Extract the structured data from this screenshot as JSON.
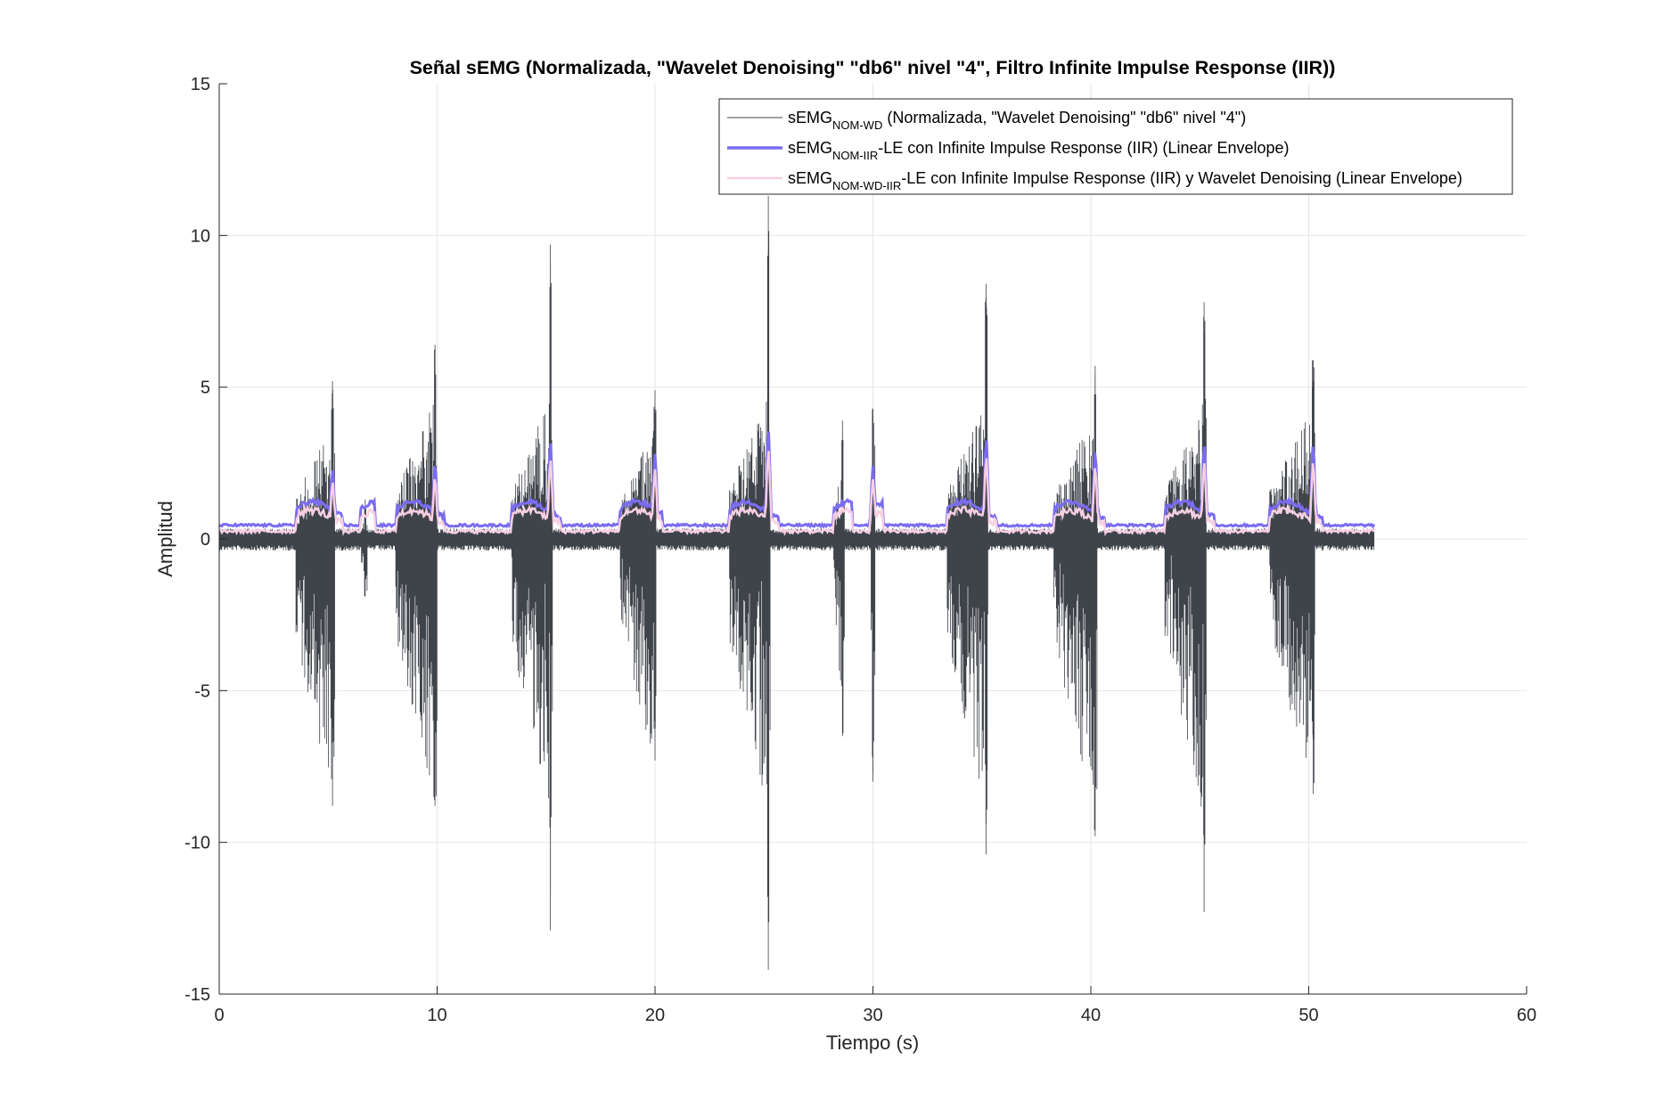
{
  "chart_data": {
    "type": "line",
    "title": "Señal sEMG (Normalizada, \"Wavelet Denoising\" \"db6\" nivel \"4\", Filtro Infinite Impulse Response (IIR))",
    "xlabel": "Tiempo (s)",
    "ylabel": "Amplitud",
    "xlim": [
      0,
      60
    ],
    "ylim": [
      -15,
      15
    ],
    "xticks": [
      0,
      10,
      20,
      30,
      40,
      50,
      60
    ],
    "yticks": [
      -15,
      -10,
      -5,
      0,
      5,
      10,
      15
    ],
    "grid": true,
    "legend_position": "top-right",
    "signal_duration_s": 53,
    "bursts": [
      {
        "start": 3.5,
        "end": 5.3,
        "peak_t": 5.2,
        "max": 5.2,
        "min": -8.8,
        "env_peak": 2.3
      },
      {
        "start": 6.5,
        "end": 6.8,
        "peak_t": 6.7,
        "max": 1.3,
        "min": -1.9,
        "env_peak": 0.7
      },
      {
        "start": 8.1,
        "end": 10.0,
        "peak_t": 9.9,
        "max": 6.4,
        "min": -8.8,
        "env_peak": 2.5
      },
      {
        "start": 13.4,
        "end": 15.3,
        "peak_t": 15.2,
        "max": 9.7,
        "min": -12.9,
        "env_peak": 3.2
      },
      {
        "start": 18.4,
        "end": 20.0,
        "peak_t": 20.0,
        "max": 4.9,
        "min": -7.3,
        "env_peak": 2.8
      },
      {
        "start": 23.4,
        "end": 25.3,
        "peak_t": 25.2,
        "max": 11.3,
        "min": -14.2,
        "env_peak": 3.6
      },
      {
        "start": 28.2,
        "end": 28.7,
        "peak_t": 28.6,
        "max": 3.9,
        "min": -6.5,
        "env_peak": 1.3
      },
      {
        "start": 29.9,
        "end": 30.1,
        "peak_t": 30.0,
        "max": 4.3,
        "min": -8.0,
        "env_peak": 2.4
      },
      {
        "start": 33.4,
        "end": 35.3,
        "peak_t": 35.2,
        "max": 8.4,
        "min": -10.4,
        "env_peak": 3.3
      },
      {
        "start": 38.3,
        "end": 40.3,
        "peak_t": 40.2,
        "max": 5.7,
        "min": -9.8,
        "env_peak": 2.9
      },
      {
        "start": 43.4,
        "end": 45.3,
        "peak_t": 45.2,
        "max": 7.8,
        "min": -12.3,
        "env_peak": 3.1
      },
      {
        "start": 48.2,
        "end": 50.3,
        "peak_t": 50.2,
        "max": 5.9,
        "min": -8.4,
        "env_peak": 3.1
      }
    ],
    "baseline_noise_amplitude": 0.35,
    "series": [
      {
        "name": "sEMG",
        "subscript": "NOM-WD",
        "suffix": " (Normalizada, \"Wavelet Denoising\" \"db6\" nivel \"4\")",
        "color": "#3f434a",
        "width": 1
      },
      {
        "name": "sEMG",
        "subscript": "NOM-IIR",
        "suffix": "-LE con Infinite Impulse Response (IIR) (Linear Envelope)",
        "color": "#7b6cf0",
        "width": 3.5,
        "baseline": 0.45
      },
      {
        "name": "sEMG",
        "subscript": "NOM-WD-IIR",
        "suffix": "-LE con Infinite Impulse Response (IIR) y Wavelet Denoising (Linear Envelope)",
        "color": "#f7cfe2",
        "width": 2.5,
        "baseline": 0.25
      }
    ]
  }
}
